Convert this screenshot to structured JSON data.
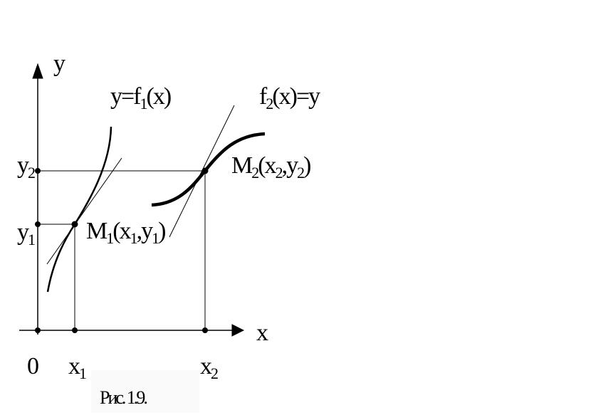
{
  "axes": {
    "y_label": "y",
    "x_label": "x",
    "origin": "0"
  },
  "ticks": {
    "x1": [
      "x",
      "1"
    ],
    "x2": [
      "x",
      "2"
    ],
    "y1": [
      "y",
      "1"
    ],
    "y2": [
      "y",
      "2"
    ]
  },
  "curves": {
    "f1": [
      "y=f",
      "1",
      "(x)"
    ],
    "f2": [
      "f",
      "2",
      "(x)=y"
    ]
  },
  "points": {
    "M1": [
      "M",
      "1",
      "(x",
      "1",
      ",y",
      "1",
      ")"
    ],
    "M2": [
      "M",
      "2",
      "(x",
      "2",
      ",y",
      "2",
      ")"
    ]
  },
  "caption": "Рис. 1.9."
}
